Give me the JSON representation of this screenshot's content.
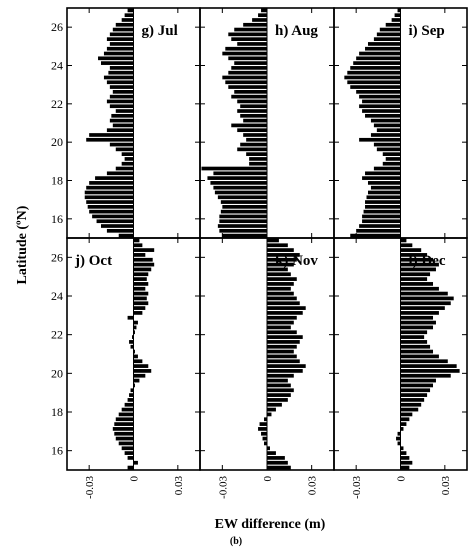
{
  "figure": {
    "ylabel": "Latitude (ºN)",
    "xlabel": "EW difference (m)",
    "sublabel": "(b)"
  },
  "chart_data": [
    {
      "type": "bar",
      "orientation": "horizontal",
      "panel_label": "g) Jul",
      "ylim": [
        15,
        27
      ],
      "xlim": [
        -0.045,
        0.045
      ],
      "y_ticks": [
        16,
        18,
        20,
        22,
        24,
        26
      ],
      "x_ticks": [
        "-0.03",
        "0",
        "0.03"
      ],
      "bin_height": 0.25,
      "y": [
        15.0,
        15.25,
        15.5,
        15.75,
        16.0,
        16.25,
        16.5,
        16.75,
        17.0,
        17.25,
        17.5,
        17.75,
        18.0,
        18.25,
        18.5,
        18.75,
        19.0,
        19.25,
        19.5,
        19.75,
        20.0,
        20.25,
        20.5,
        20.75,
        21.0,
        21.25,
        21.5,
        21.75,
        22.0,
        22.25,
        22.5,
        22.75,
        23.0,
        23.25,
        23.5,
        23.75,
        24.0,
        24.25,
        24.5,
        24.75,
        25.0,
        25.25,
        25.5,
        25.75,
        26.0,
        26.25,
        26.5,
        26.75
      ],
      "values": [
        -0.01,
        -0.018,
        -0.022,
        -0.025,
        -0.028,
        -0.03,
        -0.031,
        -0.032,
        -0.033,
        -0.033,
        -0.032,
        -0.03,
        -0.026,
        -0.018,
        -0.012,
        -0.008,
        -0.006,
        -0.008,
        -0.012,
        -0.016,
        -0.032,
        -0.03,
        -0.018,
        -0.014,
        -0.016,
        -0.015,
        -0.012,
        -0.016,
        -0.018,
        -0.016,
        -0.014,
        -0.016,
        -0.018,
        -0.02,
        -0.017,
        -0.016,
        -0.022,
        -0.024,
        -0.02,
        -0.018,
        -0.016,
        -0.018,
        -0.016,
        -0.014,
        -0.012,
        -0.008,
        -0.006,
        -0.004
      ]
    },
    {
      "type": "bar",
      "orientation": "horizontal",
      "panel_label": "h) Aug",
      "ylim": [
        15,
        27
      ],
      "xlim": [
        -0.045,
        0.045
      ],
      "y_ticks": [
        16,
        18,
        20,
        22,
        24,
        26
      ],
      "x_ticks": [
        "-0.03",
        "0",
        "0.03"
      ],
      "bin_height": 0.25,
      "y": [
        15.0,
        15.25,
        15.5,
        15.75,
        16.0,
        16.25,
        16.5,
        16.75,
        17.0,
        17.25,
        17.5,
        17.75,
        18.0,
        18.25,
        18.5,
        18.75,
        19.0,
        19.25,
        19.5,
        19.75,
        20.0,
        20.25,
        20.5,
        20.75,
        21.0,
        21.25,
        21.5,
        21.75,
        22.0,
        22.25,
        22.5,
        22.75,
        23.0,
        23.25,
        23.5,
        23.75,
        24.0,
        24.25,
        24.5,
        24.75,
        25.0,
        25.25,
        25.5,
        25.75,
        26.0,
        26.25,
        26.5,
        26.75
      ],
      "values": [
        -0.03,
        -0.032,
        -0.033,
        -0.032,
        -0.032,
        -0.031,
        -0.03,
        -0.031,
        -0.033,
        -0.035,
        -0.036,
        -0.038,
        -0.04,
        -0.036,
        -0.044,
        -0.012,
        -0.012,
        -0.014,
        -0.02,
        -0.018,
        -0.014,
        -0.016,
        -0.02,
        -0.024,
        -0.016,
        -0.018,
        -0.02,
        -0.018,
        -0.02,
        -0.024,
        -0.022,
        -0.026,
        -0.028,
        -0.03,
        -0.026,
        -0.024,
        -0.022,
        -0.026,
        -0.03,
        -0.028,
        -0.02,
        -0.024,
        -0.026,
        -0.022,
        -0.016,
        -0.01,
        -0.006,
        -0.004
      ]
    },
    {
      "type": "bar",
      "orientation": "horizontal",
      "panel_label": "i) Sep",
      "ylim": [
        15,
        27
      ],
      "xlim": [
        -0.045,
        0.045
      ],
      "y_ticks": [
        16,
        18,
        20,
        22,
        24,
        26
      ],
      "x_ticks": [
        "-0.03",
        "0",
        "0.03"
      ],
      "bin_height": 0.25,
      "y": [
        15.0,
        15.25,
        15.5,
        15.75,
        16.0,
        16.25,
        16.5,
        16.75,
        17.0,
        17.25,
        17.5,
        17.75,
        18.0,
        18.25,
        18.5,
        18.75,
        19.0,
        19.25,
        19.5,
        19.75,
        20.0,
        20.25,
        20.5,
        20.75,
        21.0,
        21.25,
        21.5,
        21.75,
        22.0,
        22.25,
        22.5,
        22.75,
        23.0,
        23.25,
        23.5,
        23.75,
        24.0,
        24.25,
        24.5,
        24.75,
        25.0,
        25.25,
        25.5,
        25.75,
        26.0,
        26.25,
        26.5,
        26.75
      ],
      "values": [
        -0.034,
        -0.03,
        -0.028,
        -0.026,
        -0.026,
        -0.025,
        -0.024,
        -0.024,
        -0.023,
        -0.022,
        -0.02,
        -0.022,
        -0.026,
        -0.024,
        -0.018,
        -0.012,
        -0.01,
        -0.012,
        -0.016,
        -0.018,
        -0.028,
        -0.02,
        -0.016,
        -0.018,
        -0.02,
        -0.024,
        -0.026,
        -0.028,
        -0.026,
        -0.028,
        -0.03,
        -0.034,
        -0.036,
        -0.038,
        -0.036,
        -0.034,
        -0.032,
        -0.03,
        -0.028,
        -0.024,
        -0.022,
        -0.018,
        -0.016,
        -0.014,
        -0.01,
        -0.006,
        -0.004,
        -0.002
      ]
    },
    {
      "type": "bar",
      "orientation": "horizontal",
      "panel_label": "j) Oct",
      "ylim": [
        15,
        27
      ],
      "xlim": [
        -0.045,
        0.045
      ],
      "y_ticks": [
        16,
        18,
        20,
        22,
        24,
        26
      ],
      "x_ticks": [
        "-0.03",
        "0",
        "0.03"
      ],
      "bin_height": 0.25,
      "y": [
        15.0,
        15.25,
        15.5,
        15.75,
        16.0,
        16.25,
        16.5,
        16.75,
        17.0,
        17.25,
        17.5,
        17.75,
        18.0,
        18.25,
        18.5,
        18.75,
        19.0,
        19.25,
        19.5,
        19.75,
        20.0,
        20.25,
        20.5,
        20.75,
        21.0,
        21.25,
        21.5,
        21.75,
        22.0,
        22.25,
        22.5,
        22.75,
        23.0,
        23.25,
        23.5,
        23.75,
        24.0,
        24.25,
        24.5,
        24.75,
        25.0,
        25.25,
        25.5,
        25.75,
        26.0,
        26.25,
        26.5,
        26.75
      ],
      "values": [
        -0.004,
        0.003,
        -0.004,
        -0.006,
        -0.008,
        -0.01,
        -0.012,
        -0.013,
        -0.014,
        -0.013,
        -0.012,
        -0.01,
        -0.008,
        -0.006,
        -0.004,
        -0.003,
        -0.002,
        0.001,
        0.004,
        0.008,
        0.012,
        0.01,
        0.006,
        0.003,
        0.001,
        -0.002,
        -0.003,
        -0.001,
        0.001,
        0.002,
        0.003,
        -0.004,
        0.006,
        0.008,
        0.01,
        0.009,
        0.01,
        0.008,
        0.01,
        0.009,
        0.01,
        0.012,
        0.014,
        0.013,
        0.008,
        0.014,
        0.006,
        0.004
      ]
    },
    {
      "type": "bar",
      "orientation": "horizontal",
      "panel_label": "k) Nov",
      "ylim": [
        15,
        27
      ],
      "xlim": [
        -0.045,
        0.045
      ],
      "y_ticks": [
        16,
        18,
        20,
        22,
        24,
        26
      ],
      "x_ticks": [
        "-0.03",
        "0",
        "0.03"
      ],
      "bin_height": 0.25,
      "y": [
        15.0,
        15.25,
        15.5,
        15.75,
        16.0,
        16.25,
        16.5,
        16.75,
        17.0,
        17.25,
        17.5,
        17.75,
        18.0,
        18.25,
        18.5,
        18.75,
        19.0,
        19.25,
        19.5,
        19.75,
        20.0,
        20.25,
        20.5,
        20.75,
        21.0,
        21.25,
        21.5,
        21.75,
        22.0,
        22.25,
        22.5,
        22.75,
        23.0,
        23.25,
        23.5,
        23.75,
        24.0,
        24.25,
        24.5,
        24.75,
        25.0,
        25.25,
        25.5,
        25.75,
        26.0,
        26.25,
        26.5,
        26.75
      ],
      "values": [
        0.016,
        0.014,
        0.012,
        0.006,
        0.002,
        -0.002,
        -0.003,
        -0.004,
        -0.006,
        -0.005,
        -0.002,
        0.003,
        0.006,
        0.01,
        0.014,
        0.016,
        0.018,
        0.016,
        0.014,
        0.018,
        0.024,
        0.026,
        0.022,
        0.02,
        0.018,
        0.02,
        0.022,
        0.024,
        0.02,
        0.016,
        0.018,
        0.02,
        0.024,
        0.026,
        0.022,
        0.02,
        0.018,
        0.016,
        0.018,
        0.02,
        0.016,
        0.014,
        0.018,
        0.02,
        0.022,
        0.018,
        0.014,
        0.008
      ]
    },
    {
      "type": "bar",
      "orientation": "horizontal",
      "panel_label": "l) Dec",
      "ylim": [
        15,
        27
      ],
      "xlim": [
        -0.045,
        0.045
      ],
      "y_ticks": [
        16,
        18,
        20,
        22,
        24,
        26
      ],
      "x_ticks": [
        "-0.03",
        "0",
        "0.03"
      ],
      "bin_height": 0.25,
      "y": [
        15.0,
        15.25,
        15.5,
        15.75,
        16.0,
        16.25,
        16.5,
        16.75,
        17.0,
        17.25,
        17.5,
        17.75,
        18.0,
        18.25,
        18.5,
        18.75,
        19.0,
        19.25,
        19.5,
        19.75,
        20.0,
        20.25,
        20.5,
        20.75,
        21.0,
        21.25,
        21.5,
        21.75,
        22.0,
        22.25,
        22.5,
        22.75,
        23.0,
        23.25,
        23.5,
        23.75,
        24.0,
        24.25,
        24.5,
        24.75,
        25.0,
        25.25,
        25.5,
        25.75,
        26.0,
        26.25,
        26.5,
        26.75
      ],
      "values": [
        0.006,
        0.008,
        0.006,
        0.004,
        0.002,
        -0.002,
        -0.003,
        -0.002,
        0.002,
        0.004,
        0.006,
        0.008,
        0.012,
        0.014,
        0.016,
        0.018,
        0.02,
        0.022,
        0.024,
        0.034,
        0.04,
        0.038,
        0.032,
        0.026,
        0.022,
        0.02,
        0.018,
        0.016,
        0.018,
        0.022,
        0.024,
        0.022,
        0.026,
        0.03,
        0.034,
        0.036,
        0.032,
        0.026,
        0.022,
        0.018,
        0.02,
        0.024,
        0.026,
        0.022,
        0.018,
        0.014,
        0.008,
        0.004
      ]
    }
  ]
}
